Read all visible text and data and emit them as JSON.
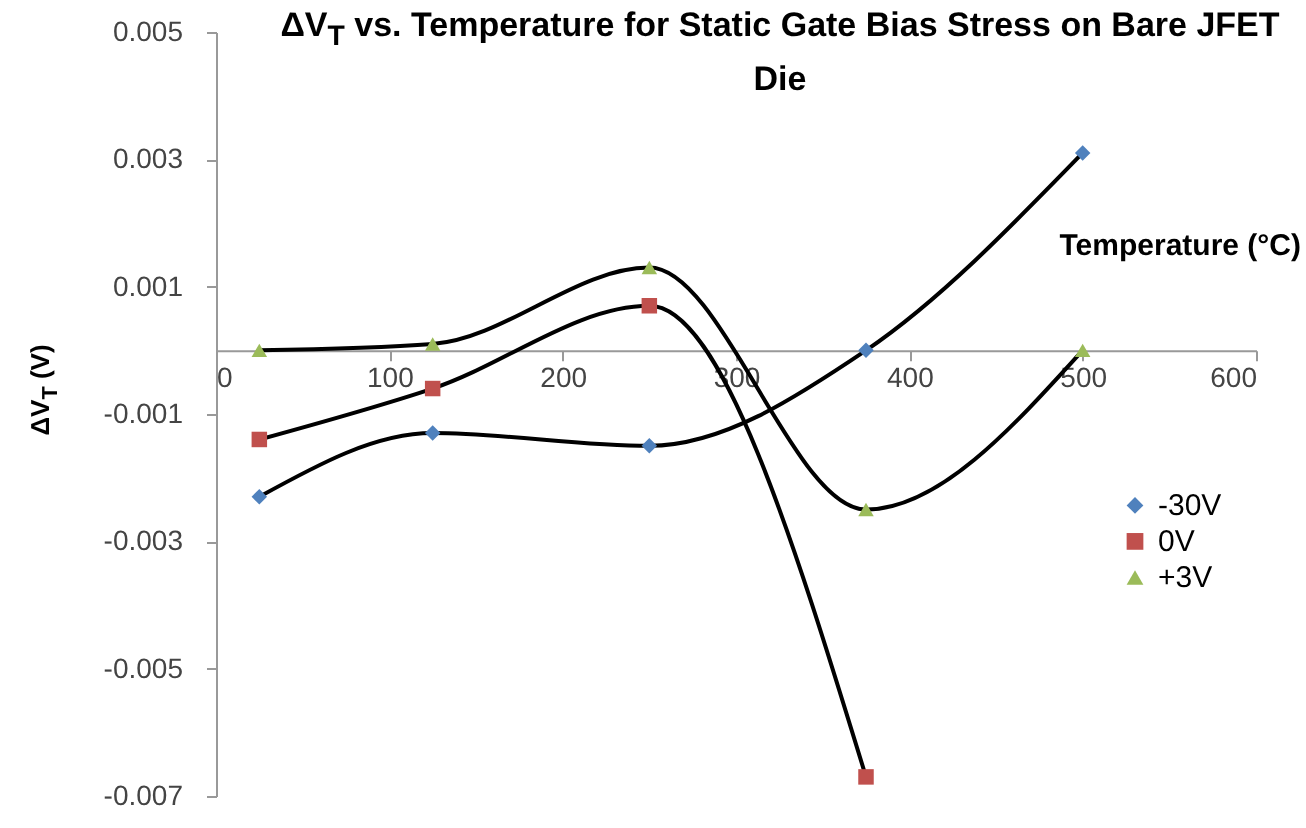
{
  "chart_data": {
    "type": "line",
    "title": "ΔV$_{T}$ vs. Temperature for Static Gate Bias Stress on Bare JFET Die",
    "xlabel": "Temperature (°C)",
    "ylabel": "ΔV$_{T}$ (V)",
    "x": [
      25,
      125,
      250,
      375,
      500
    ],
    "series": [
      {
        "name": "-30V",
        "color": "#4f81bd",
        "marker": "diamond",
        "values": [
          -0.0023,
          -0.0013,
          -0.0015,
          0,
          0.0031
        ]
      },
      {
        "name": "0V",
        "color": "#c0504d",
        "marker": "square",
        "values": [
          -0.0014,
          -0.0006,
          0.0007,
          -0.0067,
          null
        ]
      },
      {
        "name": "+3V",
        "color": "#9bbb59",
        "marker": "triangle",
        "values": [
          0,
          0.0001,
          0.0013,
          -0.0025,
          0
        ]
      }
    ],
    "xlim": [
      0,
      600
    ],
    "xticks": [
      0,
      100,
      200,
      300,
      400,
      500,
      600
    ],
    "ylim": [
      -0.007,
      0.005
    ],
    "yticks": [
      -0.007,
      -0.005,
      -0.003,
      -0.001,
      0.001,
      0.003,
      0.005
    ],
    "grid": false,
    "legend": "right",
    "line_style": "solid"
  }
}
